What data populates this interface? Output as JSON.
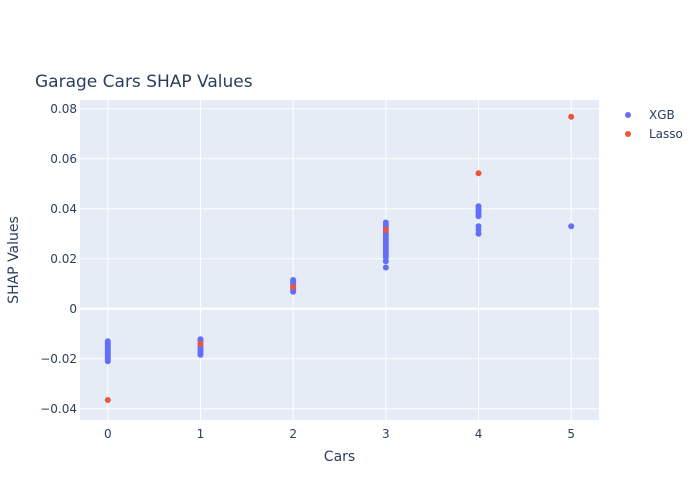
{
  "chart_data": {
    "type": "scatter",
    "title": "Garage Cars SHAP Values",
    "xlabel": "Cars",
    "ylabel": "SHAP Values",
    "xlim": [
      -0.3,
      5.3
    ],
    "ylim": [
      -0.0445,
      0.0835
    ],
    "x_ticks": [
      0,
      1,
      2,
      3,
      4,
      5
    ],
    "x_tick_labels": [
      "0",
      "1",
      "2",
      "3",
      "4",
      "5"
    ],
    "y_ticks": [
      -0.04,
      -0.02,
      0,
      0.02,
      0.04,
      0.06,
      0.08
    ],
    "y_tick_labels": [
      "−0.04",
      "−0.02",
      "0",
      "0.02",
      "0.04",
      "0.06",
      "0.08"
    ],
    "grid": true,
    "legend_position": "top-right",
    "series": [
      {
        "name": "XGB",
        "color": "#636efa",
        "points": [
          [
            0,
            -0.013
          ],
          [
            0,
            -0.0138
          ],
          [
            0,
            -0.0146
          ],
          [
            0,
            -0.0154
          ],
          [
            0,
            -0.0162
          ],
          [
            0,
            -0.017
          ],
          [
            0,
            -0.0178
          ],
          [
            0,
            -0.0186
          ],
          [
            0,
            -0.0194
          ],
          [
            0,
            -0.0202
          ],
          [
            0,
            -0.021
          ],
          [
            1,
            -0.0122
          ],
          [
            1,
            -0.013
          ],
          [
            1,
            -0.014
          ],
          [
            1,
            -0.015
          ],
          [
            1,
            -0.016
          ],
          [
            1,
            -0.0168
          ],
          [
            1,
            -0.0176
          ],
          [
            1,
            -0.0184
          ],
          [
            2,
            0.0068
          ],
          [
            2,
            0.0075
          ],
          [
            2,
            0.0082
          ],
          [
            2,
            0.0089
          ],
          [
            2,
            0.0096
          ],
          [
            2,
            0.0103
          ],
          [
            2,
            0.011
          ],
          [
            2,
            0.0115
          ],
          [
            3,
            0.0165
          ],
          [
            3,
            0.019
          ],
          [
            3,
            0.0205
          ],
          [
            3,
            0.0215
          ],
          [
            3,
            0.0225
          ],
          [
            3,
            0.0235
          ],
          [
            3,
            0.0245
          ],
          [
            3,
            0.0255
          ],
          [
            3,
            0.0265
          ],
          [
            3,
            0.0275
          ],
          [
            3,
            0.0285
          ],
          [
            3,
            0.0295
          ],
          [
            3,
            0.0305
          ],
          [
            3,
            0.0315
          ],
          [
            3,
            0.0325
          ],
          [
            3,
            0.0335
          ],
          [
            3,
            0.0345
          ],
          [
            4,
            0.03
          ],
          [
            4,
            0.0315
          ],
          [
            4,
            0.033
          ],
          [
            4,
            0.037
          ],
          [
            4,
            0.038
          ],
          [
            4,
            0.039
          ],
          [
            4,
            0.04
          ],
          [
            4,
            0.041
          ],
          [
            5,
            0.033
          ]
        ]
      },
      {
        "name": "Lasso",
        "color": "#ef553b",
        "points": [
          [
            0,
            -0.0365
          ],
          [
            1,
            -0.014
          ],
          [
            2,
            0.0087
          ],
          [
            3,
            0.0315
          ],
          [
            4,
            0.0542
          ],
          [
            5,
            0.0768
          ]
        ]
      }
    ]
  }
}
